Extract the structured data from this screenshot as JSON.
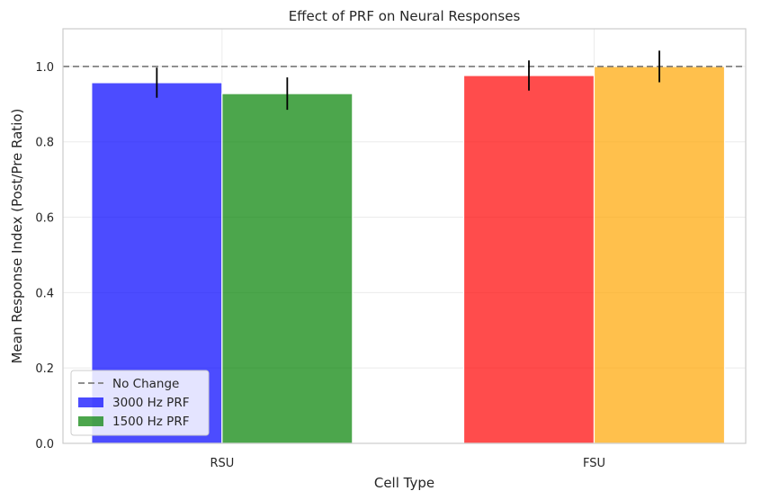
{
  "chart_data": {
    "type": "bar",
    "title": "Effect of PRF on Neural Responses",
    "xlabel": "Cell Type",
    "ylabel": "Mean Response Index (Post/Pre Ratio)",
    "ylim": [
      0,
      1.1
    ],
    "yticks": [
      "0.0",
      "0.2",
      "0.4",
      "0.6",
      "0.8",
      "1.0"
    ],
    "grid": true,
    "legend_position": "lower-left",
    "reference_line": {
      "label": "No Change",
      "value": 1.0,
      "color": "#808080"
    },
    "categories": [
      "RSU",
      "FSU"
    ],
    "bars": [
      {
        "category": "RSU",
        "series": "3000 Hz PRF",
        "value": 0.957,
        "error": 0.04,
        "color": "#0000ff"
      },
      {
        "category": "RSU",
        "series": "1500 Hz PRF",
        "value": 0.928,
        "error": 0.043,
        "color": "#008000"
      },
      {
        "category": "FSU",
        "value": 0.976,
        "error": 0.04,
        "color": "#ff0000"
      },
      {
        "category": "FSU",
        "value": 1.0,
        "error": 0.042,
        "color": "#ffa500"
      }
    ],
    "legend": [
      {
        "label": "No Change",
        "kind": "line",
        "color": "#808080"
      },
      {
        "label": "3000 Hz PRF",
        "kind": "patch",
        "color": "#0000ff"
      },
      {
        "label": "1500 Hz PRF",
        "kind": "patch",
        "color": "#008000"
      }
    ]
  }
}
